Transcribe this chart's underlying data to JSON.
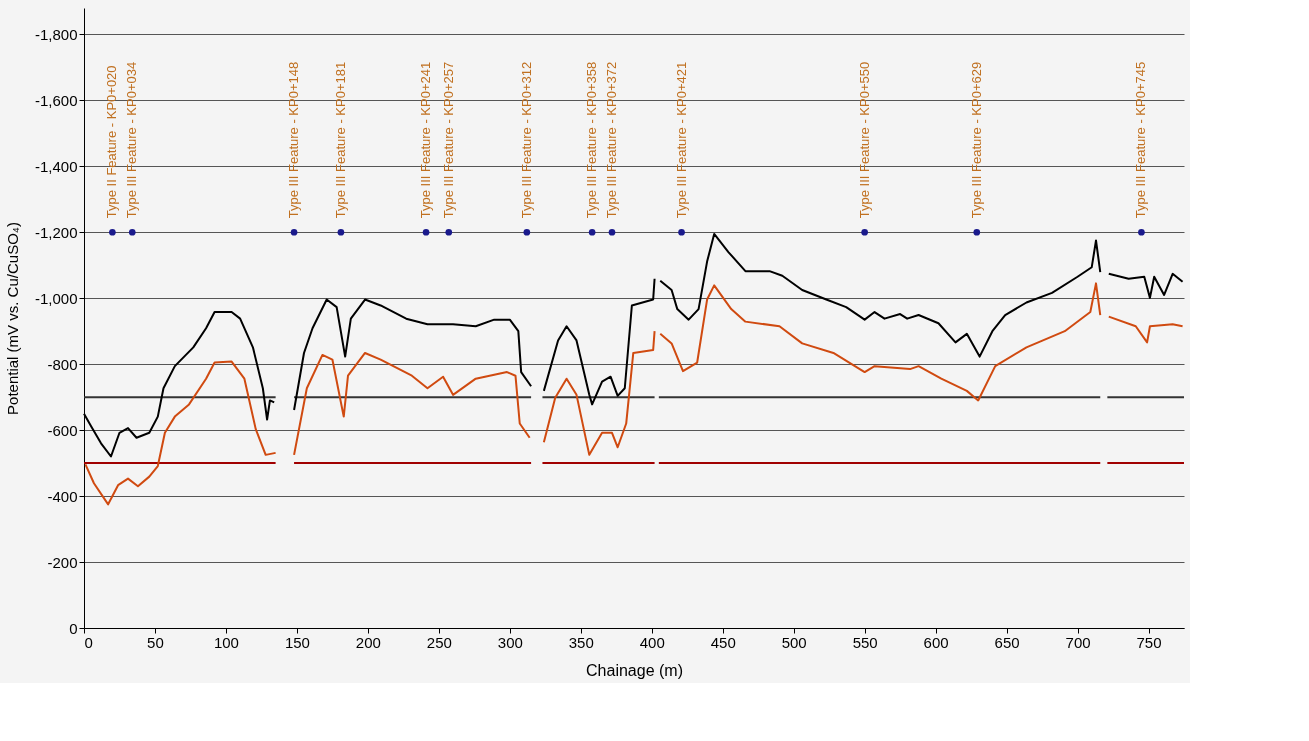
{
  "chart_data": {
    "type": "line",
    "xlabel": "Chainage (m)",
    "ylabel": "Potential (mV vs. Cu/CuSO₄)",
    "xlim": [
      0,
      775
    ],
    "xticks": [
      0,
      50,
      100,
      150,
      200,
      250,
      300,
      350,
      400,
      450,
      500,
      550,
      600,
      650,
      700,
      750
    ],
    "ylim": [
      0,
      -1880
    ],
    "yticks": [
      0,
      {
        "value": -200,
        "label": "-200"
      },
      {
        "value": -400,
        "label": "-400"
      },
      {
        "value": -600,
        "label": "-600"
      },
      {
        "value": -800,
        "label": "-800"
      },
      {
        "value": -1000,
        "label": "-1,000"
      },
      {
        "value": -1200,
        "label": "-1,200"
      },
      {
        "value": -1400,
        "label": "-1,400"
      },
      {
        "value": -1600,
        "label": "-1,600"
      },
      {
        "value": -1800,
        "label": "-1,800"
      }
    ],
    "grid": "y",
    "marker": "none",
    "line_style": "solid",
    "series": [
      {
        "color": "#333333",
        "x": [
          0,
          135,
          141,
          148,
          315,
          319,
          323,
          402,
          404,
          405,
          716,
          719,
          721,
          775
        ],
        "values": [
          -700,
          -700,
          null,
          -700,
          -700,
          null,
          -700,
          -700,
          null,
          -700,
          -700,
          null,
          -700,
          -700
        ]
      },
      {
        "color": "#a00000",
        "x": [
          0,
          135,
          141,
          148,
          315,
          319,
          323,
          402,
          404,
          405,
          716,
          719,
          721,
          775
        ],
        "values": [
          -500,
          -500,
          null,
          -500,
          -500,
          null,
          -500,
          -500,
          null,
          -500,
          -500,
          null,
          -500,
          -500
        ]
      },
      {
        "color": "#000000",
        "x": [
          0,
          5,
          12,
          19,
          25,
          31,
          37,
          46,
          52,
          56,
          64,
          77,
          86,
          92,
          104,
          110,
          119,
          126,
          129,
          131,
          134,
          141,
          148,
          155,
          161,
          171,
          178,
          184,
          188,
          198,
          209,
          227,
          242,
          260,
          276,
          289,
          300,
          306,
          308,
          315,
          319,
          324,
          334,
          340,
          347,
          356,
          358,
          365,
          371,
          376,
          381,
          386,
          401,
          402,
          404,
          406,
          414,
          418,
          426,
          433,
          439,
          444,
          454,
          466,
          483,
          492,
          506,
          523,
          537,
          550,
          557,
          564,
          575,
          580,
          588,
          602,
          614,
          622,
          631,
          640,
          649,
          664,
          682,
          700,
          710,
          713,
          716,
          719,
          722,
          736,
          747,
          751,
          754,
          761,
          767,
          774
        ],
        "values": [
          -650,
          -612,
          -560,
          -520,
          -592,
          -606,
          -577,
          -592,
          -641,
          -727,
          -794,
          -851,
          -909,
          -958,
          -958,
          -938,
          -851,
          -727,
          -632,
          -690,
          -684,
          null,
          -661,
          -834,
          -909,
          -996,
          -973,
          -823,
          -938,
          -996,
          -978,
          -938,
          -921,
          -921,
          -915,
          -935,
          -935,
          -900,
          -776,
          -733,
          null,
          -719,
          -872,
          -915,
          -872,
          -707,
          -678,
          -747,
          -762,
          -704,
          -727,
          -978,
          -996,
          -1059,
          null,
          -1053,
          -1025,
          -967,
          -935,
          -967,
          -1111,
          -1195,
          -1140,
          -1082,
          -1082,
          -1068,
          -1025,
          -996,
          -973,
          -935,
          -958,
          -938,
          -952,
          -938,
          -949,
          -924,
          -866,
          -892,
          -823,
          -900,
          -949,
          -987,
          -1016,
          -1065,
          -1094,
          -1175,
          -1079,
          null,
          -1074,
          -1059,
          -1065,
          -1001,
          -1065,
          -1010,
          -1074,
          -1050
        ]
      },
      {
        "color": "#d04a10",
        "x": [
          1,
          7,
          17,
          24,
          31,
          38,
          46,
          52,
          57,
          64,
          74,
          86,
          92,
          104,
          113,
          121,
          128,
          135,
          141,
          148,
          157,
          168,
          175,
          183,
          186,
          198,
          209,
          231,
          242,
          253,
          260,
          276,
          298,
          304,
          307,
          314,
          319,
          324,
          332,
          340,
          347,
          356,
          365,
          372,
          376,
          382,
          387,
          401,
          402,
          404,
          406,
          414,
          422,
          432,
          439,
          444,
          456,
          466,
          490,
          506,
          528,
          550,
          557,
          582,
          588,
          604,
          622,
          630,
          642,
          664,
          691,
          709,
          713,
          716,
          719,
          722,
          741,
          749,
          751,
          767,
          774
        ],
        "values": [
          -496,
          -439,
          -375,
          -433,
          -453,
          -430,
          -459,
          -491,
          -592,
          -641,
          -678,
          -756,
          -805,
          -808,
          -756,
          -603,
          -525,
          -531,
          null,
          -525,
          -727,
          -828,
          -814,
          -641,
          -765,
          -834,
          -814,
          -765,
          -727,
          -762,
          -707,
          -756,
          -776,
          -765,
          -620,
          -577,
          null,
          -563,
          -698,
          -756,
          -707,
          -525,
          -592,
          -592,
          -548,
          -620,
          -834,
          -843,
          -900,
          null,
          -892,
          -863,
          -779,
          -805,
          -996,
          -1039,
          -967,
          -929,
          -915,
          -863,
          -834,
          -776,
          -794,
          -785,
          -794,
          -756,
          -719,
          -690,
          -794,
          -851,
          -900,
          -958,
          -1045,
          -949,
          null,
          -944,
          -915,
          -866,
          -915,
          -921,
          -915
        ]
      },
      {
        "type": "scatter",
        "color": "#1a1a8c",
        "x": [
          20,
          34,
          148,
          181,
          241,
          257,
          312,
          358,
          372,
          421,
          550,
          629,
          745
        ],
        "values": [
          -1200,
          -1200,
          -1200,
          -1200,
          -1200,
          -1200,
          -1200,
          -1200,
          -1200,
          -1200,
          -1200,
          -1200,
          -1200
        ]
      }
    ],
    "annotations": [
      {
        "text": "Type II Feature - KP0+020",
        "x": 20,
        "y": -1200
      },
      {
        "text": "Type III Feature - KP0+034",
        "x": 34,
        "y": -1200
      },
      {
        "text": "Type III Feature - KP0+148",
        "x": 148,
        "y": -1200
      },
      {
        "text": "Type III Feature - KP0+181",
        "x": 181,
        "y": -1200
      },
      {
        "text": "Type III Feature - KP0+241",
        "x": 241,
        "y": -1200
      },
      {
        "text": "Type III Feature - KP0+257",
        "x": 257,
        "y": -1200
      },
      {
        "text": "Type III Feature - KP0+312",
        "x": 312,
        "y": -1200
      },
      {
        "text": "Type III Feature - KP0+358",
        "x": 358,
        "y": -1200
      },
      {
        "text": "Type III Feature - KP0+372",
        "x": 372,
        "y": -1200
      },
      {
        "text": "Type III Feature - KP0+421",
        "x": 421,
        "y": -1200
      },
      {
        "text": "Type III Feature - KP0+550",
        "x": 550,
        "y": -1200
      },
      {
        "text": "Type III Feature - KP0+629",
        "x": 629,
        "y": -1200
      },
      {
        "text": "Type III Feature - KP0+745",
        "x": 745,
        "y": -1200
      }
    ]
  }
}
